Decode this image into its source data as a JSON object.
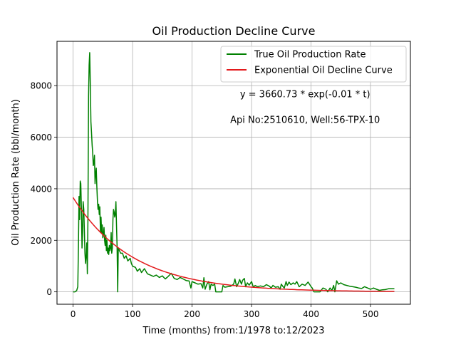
{
  "chart_data": {
    "type": "line",
    "title": "Oil Production Decline Curve",
    "xlabel": "Time (months) from:1/1978 to:12/2023",
    "ylabel": "Oil Production Rate (bbl/month)",
    "xlim": [
      -27,
      567
    ],
    "ylim": [
      -480,
      9720
    ],
    "xticks": [
      0,
      100,
      200,
      300,
      400,
      500
    ],
    "yticks": [
      0,
      2000,
      4000,
      6000,
      8000
    ],
    "grid": true,
    "legend_position": "top-right",
    "annotations": [
      {
        "text": "y = 3660.73 * exp(-0.01 * t)",
        "x": 390,
        "y": 7550
      },
      {
        "text": "Api No:2510610, Well:56-TPX-10",
        "x": 390,
        "y": 6550
      }
    ],
    "series": [
      {
        "name": "True Oil Production Rate",
        "color": "#008000",
        "points": [
          [
            0,
            0
          ],
          [
            3,
            0
          ],
          [
            6,
            50
          ],
          [
            8,
            200
          ],
          [
            9,
            1800
          ],
          [
            10,
            3700
          ],
          [
            11,
            2800
          ],
          [
            12,
            4300
          ],
          [
            13,
            4200
          ],
          [
            14,
            3300
          ],
          [
            15,
            1700
          ],
          [
            16,
            2300
          ],
          [
            17,
            3500
          ],
          [
            18,
            3200
          ],
          [
            19,
            2400
          ],
          [
            20,
            1500
          ],
          [
            21,
            1100
          ],
          [
            22,
            1400
          ],
          [
            23,
            1900
          ],
          [
            24,
            700
          ],
          [
            25,
            2800
          ],
          [
            26,
            7600
          ],
          [
            27,
            8800
          ],
          [
            28,
            9280
          ],
          [
            29,
            8000
          ],
          [
            30,
            6600
          ],
          [
            31,
            6200
          ],
          [
            32,
            5700
          ],
          [
            33,
            5400
          ],
          [
            34,
            4900
          ],
          [
            35,
            5000
          ],
          [
            36,
            5300
          ],
          [
            37,
            4200
          ],
          [
            38,
            4600
          ],
          [
            39,
            4800
          ],
          [
            40,
            4100
          ],
          [
            41,
            3500
          ],
          [
            42,
            3200
          ],
          [
            43,
            3400
          ],
          [
            44,
            3000
          ],
          [
            45,
            3300
          ],
          [
            46,
            2300
          ],
          [
            47,
            2900
          ],
          [
            48,
            2300
          ],
          [
            49,
            2600
          ],
          [
            50,
            2100
          ],
          [
            51,
            2200
          ],
          [
            52,
            2500
          ],
          [
            53,
            2000
          ],
          [
            54,
            1800
          ],
          [
            55,
            2200
          ],
          [
            56,
            1600
          ],
          [
            57,
            2000
          ],
          [
            58,
            1500
          ],
          [
            59,
            1700
          ],
          [
            60,
            1450
          ],
          [
            61,
            1800
          ],
          [
            62,
            1600
          ],
          [
            63,
            1700
          ],
          [
            64,
            2300
          ],
          [
            65,
            1500
          ],
          [
            66,
            1700
          ],
          [
            67,
            2800
          ],
          [
            68,
            3200
          ],
          [
            69,
            3100
          ],
          [
            70,
            2900
          ],
          [
            71,
            3000
          ],
          [
            72,
            3500
          ],
          [
            73,
            2600
          ],
          [
            74,
            1800
          ],
          [
            75,
            0
          ],
          [
            76,
            1700
          ],
          [
            78,
            1600
          ],
          [
            80,
            1500
          ],
          [
            83,
            1500
          ],
          [
            86,
            1300
          ],
          [
            89,
            1400
          ],
          [
            92,
            1200
          ],
          [
            96,
            1300
          ],
          [
            98,
            1100
          ],
          [
            100,
            1000
          ],
          [
            105,
            950
          ],
          [
            108,
            800
          ],
          [
            112,
            900
          ],
          [
            115,
            750
          ],
          [
            120,
            900
          ],
          [
            125,
            700
          ],
          [
            130,
            650
          ],
          [
            135,
            600
          ],
          [
            140,
            650
          ],
          [
            145,
            560
          ],
          [
            150,
            620
          ],
          [
            155,
            500
          ],
          [
            160,
            600
          ],
          [
            165,
            720
          ],
          [
            170,
            520
          ],
          [
            175,
            480
          ],
          [
            180,
            560
          ],
          [
            185,
            500
          ],
          [
            190,
            440
          ],
          [
            195,
            420
          ],
          [
            198,
            150
          ],
          [
            200,
            400
          ],
          [
            205,
            350
          ],
          [
            210,
            300
          ],
          [
            215,
            320
          ],
          [
            218,
            150
          ],
          [
            220,
            550
          ],
          [
            222,
            100
          ],
          [
            225,
            300
          ],
          [
            228,
            400
          ],
          [
            230,
            80
          ],
          [
            232,
            300
          ],
          [
            235,
            250
          ],
          [
            238,
            300
          ],
          [
            240,
            0
          ],
          [
            245,
            0
          ],
          [
            250,
            0
          ],
          [
            252,
            250
          ],
          [
            255,
            180
          ],
          [
            260,
            200
          ],
          [
            265,
            220
          ],
          [
            270,
            300
          ],
          [
            272,
            500
          ],
          [
            275,
            200
          ],
          [
            278,
            350
          ],
          [
            280,
            480
          ],
          [
            283,
            300
          ],
          [
            285,
            450
          ],
          [
            288,
            520
          ],
          [
            290,
            200
          ],
          [
            293,
            350
          ],
          [
            296,
            260
          ],
          [
            300,
            400
          ],
          [
            303,
            180
          ],
          [
            306,
            250
          ],
          [
            310,
            200
          ],
          [
            315,
            230
          ],
          [
            320,
            200
          ],
          [
            325,
            280
          ],
          [
            330,
            220
          ],
          [
            333,
            150
          ],
          [
            336,
            250
          ],
          [
            340,
            180
          ],
          [
            345,
            200
          ],
          [
            348,
            100
          ],
          [
            350,
            300
          ],
          [
            353,
            200
          ],
          [
            355,
            150
          ],
          [
            358,
            400
          ],
          [
            360,
            250
          ],
          [
            363,
            380
          ],
          [
            366,
            280
          ],
          [
            370,
            350
          ],
          [
            373,
            300
          ],
          [
            376,
            400
          ],
          [
            380,
            200
          ],
          [
            385,
            300
          ],
          [
            390,
            250
          ],
          [
            395,
            380
          ],
          [
            400,
            200
          ],
          [
            402,
            150
          ],
          [
            405,
            0
          ],
          [
            415,
            0
          ],
          [
            420,
            150
          ],
          [
            425,
            100
          ],
          [
            428,
            0
          ],
          [
            432,
            150
          ],
          [
            435,
            50
          ],
          [
            438,
            250
          ],
          [
            440,
            0
          ],
          [
            443,
            430
          ],
          [
            446,
            300
          ],
          [
            450,
            350
          ],
          [
            455,
            280
          ],
          [
            460,
            250
          ],
          [
            465,
            220
          ],
          [
            470,
            200
          ],
          [
            475,
            180
          ],
          [
            480,
            150
          ],
          [
            485,
            130
          ],
          [
            490,
            200
          ],
          [
            495,
            150
          ],
          [
            500,
            100
          ],
          [
            505,
            150
          ],
          [
            510,
            100
          ],
          [
            515,
            60
          ],
          [
            520,
            80
          ],
          [
            525,
            90
          ],
          [
            530,
            120
          ],
          [
            535,
            120
          ],
          [
            540,
            120
          ]
        ]
      },
      {
        "name": "Exponential Oil Decline Curve",
        "color": "#e31a1c",
        "model": {
          "a": 3660.73,
          "b": 0.01,
          "x_start": 0,
          "x_end": 540
        }
      }
    ]
  }
}
